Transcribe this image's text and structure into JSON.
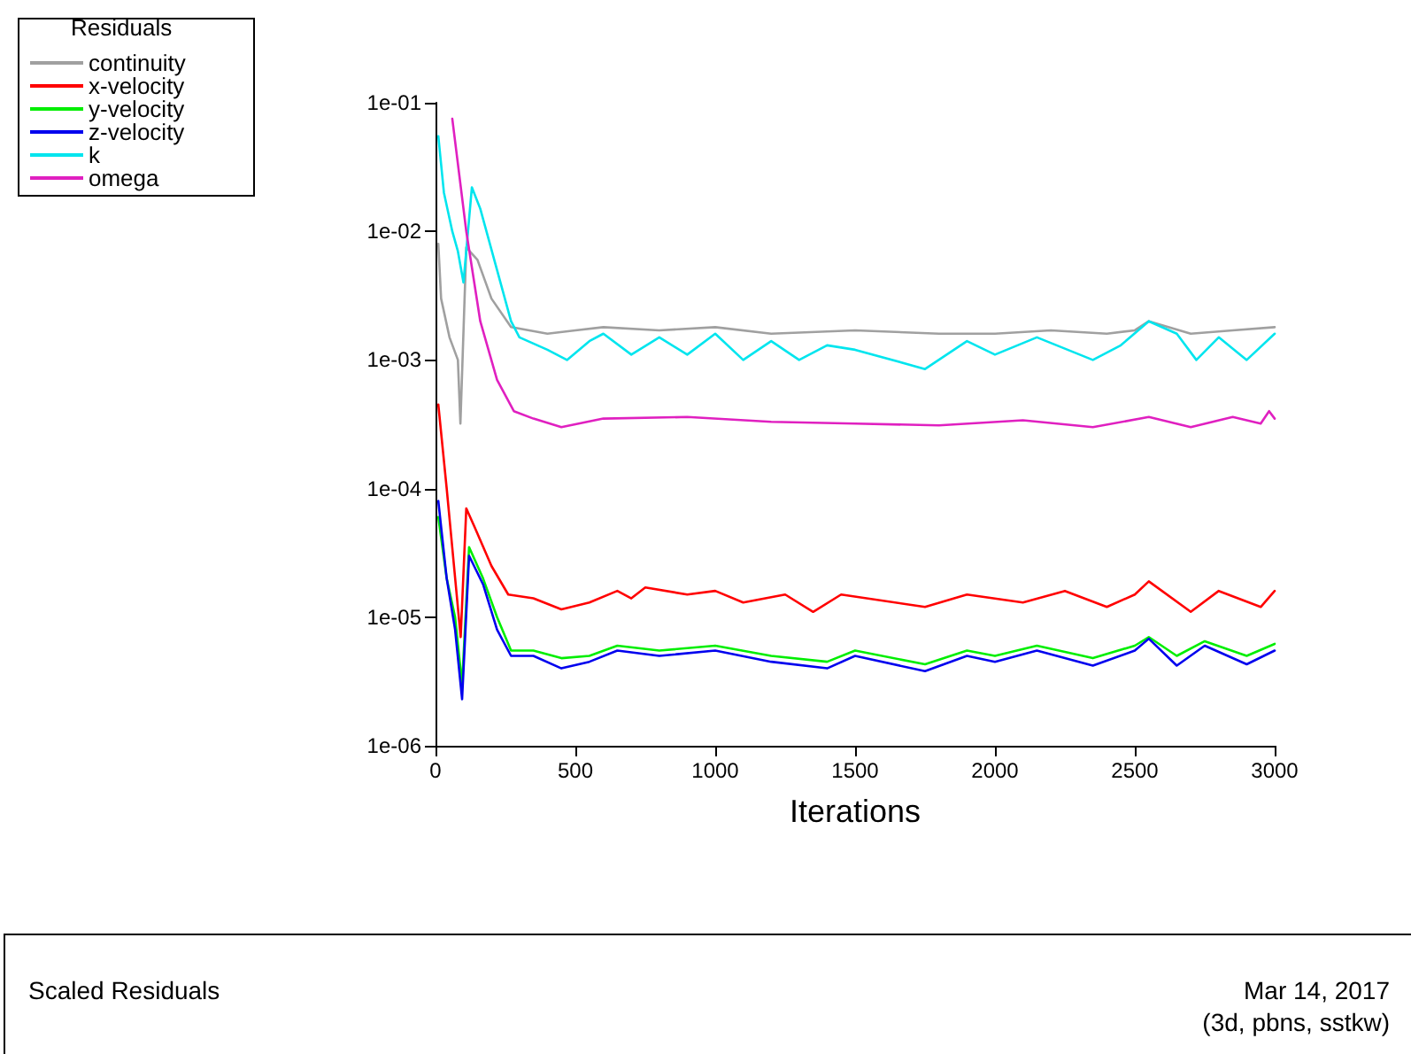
{
  "chart_data": {
    "type": "line",
    "title": "Scaled Residuals",
    "xlabel": "Iterations",
    "legend_title": "Residuals",
    "legend": "top left",
    "grid": false,
    "log": "y",
    "marker": "none",
    "line_style": "solid",
    "xlim": [
      0,
      3000
    ],
    "xticks": [
      0,
      500,
      1000,
      1500,
      2000,
      2500,
      3000
    ],
    "ylim": [
      1e-06,
      0.1
    ],
    "yticks": [
      {
        "value": 1e-06,
        "label": "1e-06"
      },
      {
        "value": 1e-05,
        "label": "1e-05"
      },
      {
        "value": 0.0001,
        "label": "1e-04"
      },
      {
        "value": 0.001,
        "label": "1e-03"
      },
      {
        "value": 0.01,
        "label": "1e-02"
      },
      {
        "value": 0.1,
        "label": "1e-01"
      }
    ],
    "annotations": [
      "Mar 14, 2017",
      "(3d, pbns, sstkw)"
    ],
    "series": [
      {
        "name": "continuity",
        "color": "#a0a0a0",
        "x": [
          10,
          20,
          50,
          80,
          89,
          110,
          150,
          200,
          270,
          400,
          500,
          600,
          800,
          1000,
          1200,
          1500,
          1800,
          2000,
          2200,
          2400,
          2500,
          2550,
          2700,
          2850,
          3000
        ],
        "values": [
          0.008,
          0.003,
          0.0015,
          0.001,
          0.00032,
          0.0075,
          0.006,
          0.003,
          0.0018,
          0.0016,
          0.0017,
          0.0018,
          0.0017,
          0.0018,
          0.0016,
          0.0017,
          0.0016,
          0.0016,
          0.0017,
          0.0016,
          0.0017,
          0.002,
          0.0016,
          0.0017,
          0.0018
        ]
      },
      {
        "name": "x-velocity",
        "color": "#ff0000",
        "x": [
          10,
          40,
          90,
          110,
          140,
          200,
          260,
          350,
          450,
          550,
          650,
          700,
          750,
          900,
          1000,
          1100,
          1250,
          1350,
          1450,
          1750,
          1900,
          2100,
          2250,
          2400,
          2500,
          2550,
          2700,
          2800,
          2950,
          3000
        ],
        "values": [
          0.00045,
          0.0001,
          7e-06,
          7e-05,
          5e-05,
          2.5e-05,
          1.5e-05,
          1.4e-05,
          1.15e-05,
          1.3e-05,
          1.6e-05,
          1.4e-05,
          1.7e-05,
          1.5e-05,
          1.6e-05,
          1.3e-05,
          1.5e-05,
          1.1e-05,
          1.5e-05,
          1.2e-05,
          1.5e-05,
          1.3e-05,
          1.6e-05,
          1.2e-05,
          1.5e-05,
          1.9e-05,
          1.1e-05,
          1.6e-05,
          1.2e-05,
          1.6e-05
        ]
      },
      {
        "name": "y-velocity",
        "color": "#00ee00",
        "x": [
          10,
          40,
          70,
          95,
          120,
          170,
          220,
          270,
          350,
          450,
          550,
          650,
          800,
          1000,
          1200,
          1400,
          1500,
          1750,
          1900,
          2000,
          2150,
          2350,
          2500,
          2550,
          2650,
          2750,
          2900,
          3000
        ],
        "values": [
          6e-05,
          2e-05,
          1e-05,
          3e-06,
          3.5e-05,
          2e-05,
          1e-05,
          5.5e-06,
          5.5e-06,
          4.8e-06,
          5e-06,
          6e-06,
          5.5e-06,
          6e-06,
          5e-06,
          4.5e-06,
          5.5e-06,
          4.3e-06,
          5.5e-06,
          5e-06,
          6e-06,
          4.8e-06,
          6e-06,
          7e-06,
          5e-06,
          6.5e-06,
          5e-06,
          6.2e-06
        ]
      },
      {
        "name": "z-velocity",
        "color": "#0000ee",
        "x": [
          10,
          40,
          70,
          95,
          120,
          170,
          220,
          270,
          350,
          450,
          550,
          650,
          800,
          1000,
          1200,
          1400,
          1500,
          1750,
          1900,
          2000,
          2150,
          2350,
          2500,
          2550,
          2650,
          2750,
          2900,
          3000
        ],
        "values": [
          8e-05,
          2e-05,
          8e-06,
          2.3e-06,
          3e-05,
          1.8e-05,
          8e-06,
          5e-06,
          5e-06,
          4e-06,
          4.5e-06,
          5.5e-06,
          5e-06,
          5.5e-06,
          4.5e-06,
          4e-06,
          5e-06,
          3.8e-06,
          5e-06,
          4.5e-06,
          5.5e-06,
          4.2e-06,
          5.5e-06,
          6.8e-06,
          4.2e-06,
          6e-06,
          4.3e-06,
          5.5e-06
        ]
      },
      {
        "name": "k",
        "color": "#00e5ee",
        "x": [
          10,
          30,
          60,
          80,
          100,
          130,
          160,
          220,
          270,
          300,
          400,
          470,
          550,
          600,
          700,
          800,
          900,
          1000,
          1100,
          1200,
          1300,
          1400,
          1500,
          1750,
          1900,
          2000,
          2150,
          2350,
          2450,
          2550,
          2650,
          2720,
          2800,
          2900,
          3000
        ],
        "values": [
          0.055,
          0.02,
          0.01,
          0.007,
          0.004,
          0.022,
          0.015,
          0.005,
          0.002,
          0.0015,
          0.0012,
          0.001,
          0.0014,
          0.0016,
          0.0011,
          0.0015,
          0.0011,
          0.0016,
          0.001,
          0.0014,
          0.001,
          0.0013,
          0.0012,
          0.00085,
          0.0014,
          0.0011,
          0.0015,
          0.001,
          0.0013,
          0.002,
          0.0016,
          0.001,
          0.0015,
          0.001,
          0.0016
        ]
      },
      {
        "name": "omega",
        "color": "#e020c0",
        "x": [
          60,
          110,
          160,
          220,
          280,
          350,
          450,
          600,
          900,
          1200,
          1500,
          1800,
          2100,
          2350,
          2550,
          2700,
          2850,
          2950,
          2980,
          3000
        ],
        "values": [
          0.075,
          0.01,
          0.002,
          0.0007,
          0.0004,
          0.00035,
          0.0003,
          0.00035,
          0.00036,
          0.00033,
          0.00032,
          0.00031,
          0.00034,
          0.0003,
          0.00036,
          0.0003,
          0.00036,
          0.00032,
          0.0004,
          0.00035
        ]
      }
    ]
  }
}
